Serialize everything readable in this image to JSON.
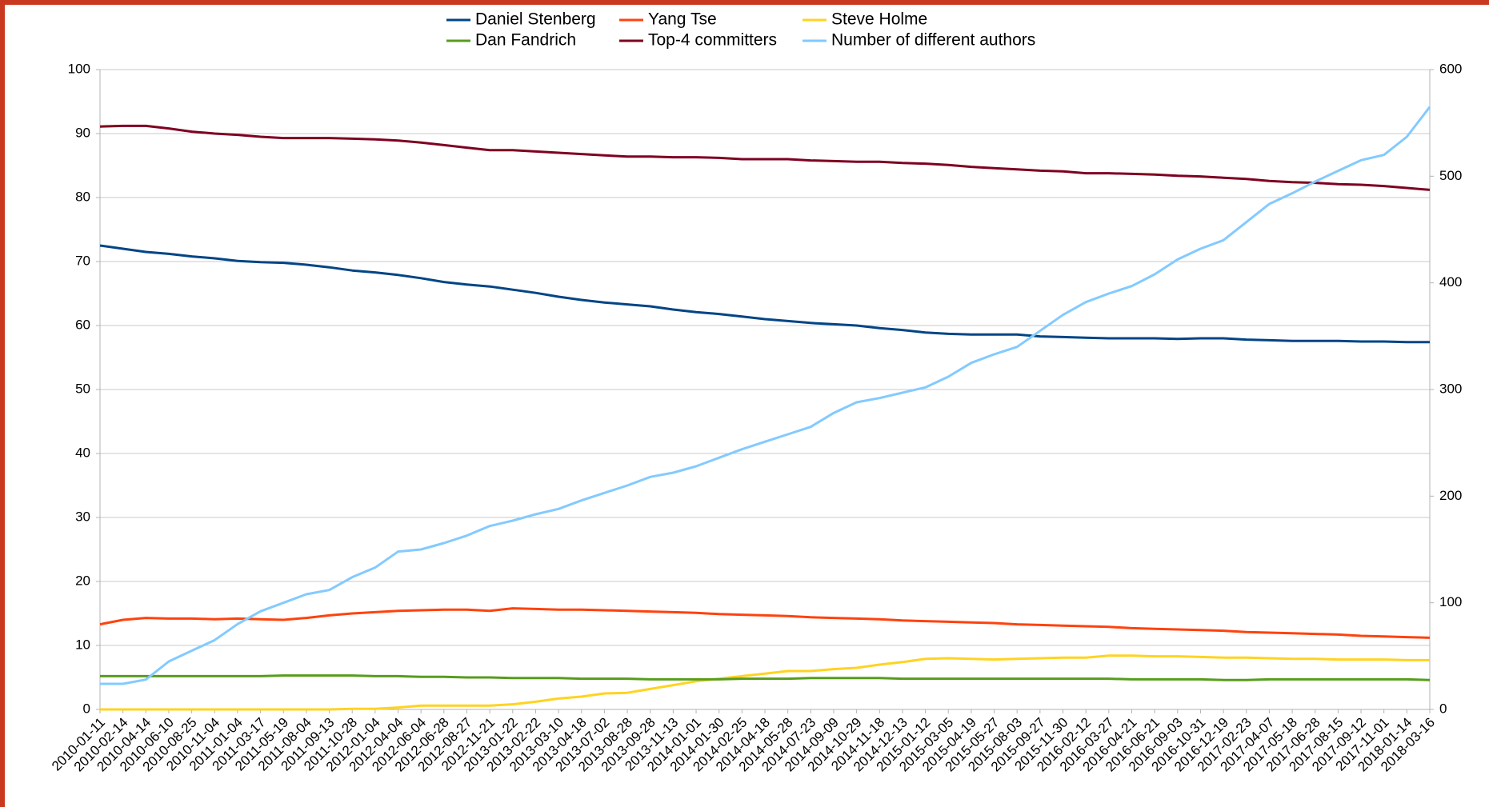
{
  "chart_data": {
    "type": "line",
    "categories": [
      "2010-01-11",
      "2010-02-14",
      "2010-04-14",
      "2010-06-10",
      "2010-08-25",
      "2010-11-04",
      "2011-01-04",
      "2011-03-17",
      "2011-05-19",
      "2011-08-04",
      "2011-09-13",
      "2011-10-28",
      "2012-01-04",
      "2012-04-04",
      "2012-06-04",
      "2012-06-28",
      "2012-08-27",
      "2012-11-21",
      "2013-01-22",
      "2013-02-22",
      "2013-03-10",
      "2013-04-18",
      "2013-07-02",
      "2013-08-28",
      "2013-09-28",
      "2013-11-13",
      "2014-01-01",
      "2014-01-30",
      "2014-02-25",
      "2014-04-18",
      "2014-05-28",
      "2014-07-23",
      "2014-09-09",
      "2014-10-29",
      "2014-11-18",
      "2014-12-13",
      "2015-01-12",
      "2015-03-05",
      "2015-04-19",
      "2015-05-27",
      "2015-08-03",
      "2015-09-27",
      "2015-11-30",
      "2016-02-12",
      "2016-03-27",
      "2016-04-21",
      "2016-06-21",
      "2016-09-03",
      "2016-10-31",
      "2016-12-19",
      "2017-02-23",
      "2017-04-07",
      "2017-05-18",
      "2017-06-28",
      "2017-08-15",
      "2017-09-12",
      "2017-11-01",
      "2018-01-14",
      "2018-03-16"
    ],
    "series": [
      {
        "name": "Daniel Stenberg",
        "color": "#004586",
        "values": [
          72.5,
          72.0,
          71.5,
          71.2,
          70.8,
          70.5,
          70.1,
          69.9,
          69.8,
          69.5,
          69.1,
          68.6,
          68.3,
          67.9,
          67.4,
          66.8,
          66.4,
          66.1,
          65.6,
          65.1,
          64.5,
          64.0,
          63.6,
          63.3,
          63.0,
          62.5,
          62.1,
          61.8,
          61.4,
          61.0,
          60.7,
          60.4,
          60.2,
          60.0,
          59.6,
          59.3,
          58.9,
          58.7,
          58.6,
          58.6,
          58.6,
          58.3,
          58.2,
          58.1,
          58.0,
          58.0,
          58.0,
          57.9,
          58.0,
          58.0,
          57.8,
          57.7,
          57.6,
          57.6,
          57.6,
          57.5,
          57.5,
          57.4,
          57.4
        ]
      },
      {
        "name": "Yang Tse",
        "color": "#ff420e",
        "values": [
          13.3,
          14.0,
          14.3,
          14.2,
          14.2,
          14.1,
          14.2,
          14.1,
          14.0,
          14.3,
          14.7,
          15.0,
          15.2,
          15.4,
          15.5,
          15.6,
          15.6,
          15.4,
          15.8,
          15.7,
          15.6,
          15.6,
          15.5,
          15.4,
          15.3,
          15.2,
          15.1,
          14.9,
          14.8,
          14.7,
          14.6,
          14.4,
          14.3,
          14.2,
          14.1,
          13.9,
          13.8,
          13.7,
          13.6,
          13.5,
          13.3,
          13.2,
          13.1,
          13.0,
          12.9,
          12.7,
          12.6,
          12.5,
          12.4,
          12.3,
          12.1,
          12.0,
          11.9,
          11.8,
          11.7,
          11.5,
          11.4,
          11.3,
          11.2
        ]
      },
      {
        "name": "Steve Holme",
        "color": "#ffd320",
        "values": [
          0,
          0,
          0,
          0,
          0,
          0,
          0,
          0,
          0,
          0,
          0,
          0.1,
          0.1,
          0.3,
          0.6,
          0.6,
          0.6,
          0.6,
          0.8,
          1.2,
          1.7,
          2.0,
          2.5,
          2.6,
          3.2,
          3.8,
          4.4,
          4.8,
          5.2,
          5.6,
          6.0,
          6.0,
          6.3,
          6.5,
          7.0,
          7.4,
          7.9,
          8.0,
          7.9,
          7.8,
          7.9,
          8.0,
          8.1,
          8.1,
          8.4,
          8.4,
          8.3,
          8.3,
          8.2,
          8.1,
          8.1,
          8.0,
          7.9,
          7.9,
          7.8,
          7.8,
          7.8,
          7.7,
          7.7
        ]
      },
      {
        "name": "Dan Fandrich",
        "color": "#579d1c",
        "values": [
          5.2,
          5.2,
          5.2,
          5.2,
          5.2,
          5.2,
          5.2,
          5.2,
          5.3,
          5.3,
          5.3,
          5.3,
          5.2,
          5.2,
          5.1,
          5.1,
          5.0,
          5.0,
          4.9,
          4.9,
          4.9,
          4.8,
          4.8,
          4.8,
          4.7,
          4.7,
          4.7,
          4.7,
          4.8,
          4.8,
          4.8,
          4.9,
          4.9,
          4.9,
          4.9,
          4.8,
          4.8,
          4.8,
          4.8,
          4.8,
          4.8,
          4.8,
          4.8,
          4.8,
          4.8,
          4.7,
          4.7,
          4.7,
          4.7,
          4.6,
          4.6,
          4.7,
          4.7,
          4.7,
          4.7,
          4.7,
          4.7,
          4.7,
          4.6
        ]
      },
      {
        "name": "Top-4 committers",
        "color": "#7e0021",
        "values": [
          91.1,
          91.2,
          91.2,
          90.8,
          90.3,
          90.0,
          89.8,
          89.5,
          89.3,
          89.3,
          89.3,
          89.2,
          89.1,
          88.9,
          88.6,
          88.2,
          87.8,
          87.4,
          87.4,
          87.2,
          87.0,
          86.8,
          86.6,
          86.4,
          86.4,
          86.3,
          86.3,
          86.2,
          86.0,
          86.0,
          86.0,
          85.8,
          85.7,
          85.6,
          85.6,
          85.4,
          85.3,
          85.1,
          84.8,
          84.6,
          84.4,
          84.2,
          84.1,
          83.8,
          83.8,
          83.7,
          83.6,
          83.4,
          83.3,
          83.1,
          82.9,
          82.6,
          82.4,
          82.3,
          82.1,
          82.0,
          81.8,
          81.5,
          81.2
        ]
      },
      {
        "name": "Number of different authors",
        "color": "#83caff",
        "axis": "y2",
        "values": [
          24,
          24,
          28,
          45,
          55,
          65,
          80,
          92,
          100,
          108,
          112,
          124,
          133,
          148,
          150,
          156,
          163,
          172,
          177,
          183,
          188,
          196,
          203,
          210,
          218,
          222,
          228,
          236,
          244,
          251,
          258,
          265,
          278,
          288,
          292,
          297,
          302,
          312,
          325,
          333,
          340,
          355,
          370,
          382,
          390,
          397,
          408,
          422,
          432,
          440,
          457,
          474,
          484,
          495,
          505,
          515,
          520,
          537,
          565
        ]
      }
    ],
    "ylim": [
      0,
      100
    ],
    "yticks": [
      0,
      10,
      20,
      30,
      40,
      50,
      60,
      70,
      80,
      90,
      100
    ],
    "y2lim": [
      0,
      600
    ],
    "y2ticks": [
      0,
      100,
      200,
      300,
      400,
      500,
      600
    ],
    "grid": true,
    "legend": "top"
  }
}
